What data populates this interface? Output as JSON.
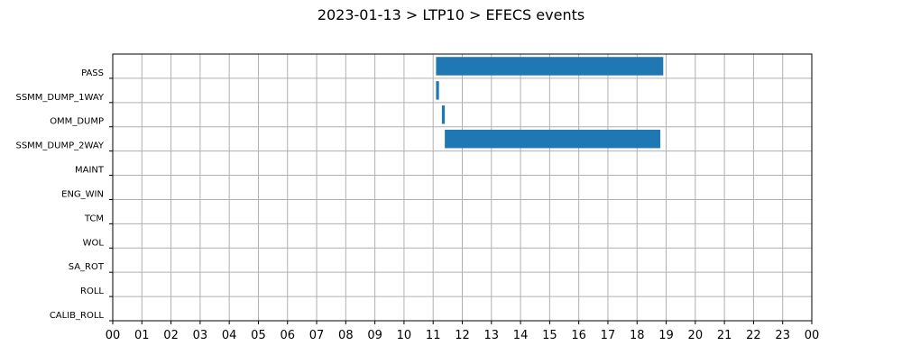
{
  "chart_data": {
    "type": "bar",
    "orientation": "horizontal-timeline",
    "title": "2023-01-13 > LTP10 > EFECS events",
    "xlabel": "",
    "ylabel": "",
    "x_unit": "hour",
    "xlim": [
      0,
      24
    ],
    "x_tick_labels": [
      "00",
      "01",
      "02",
      "03",
      "04",
      "05",
      "06",
      "07",
      "08",
      "09",
      "10",
      "11",
      "12",
      "13",
      "14",
      "15",
      "16",
      "17",
      "18",
      "19",
      "20",
      "21",
      "22",
      "23",
      "00"
    ],
    "categories": [
      "PASS",
      "SSMM_DUMP_1WAY",
      "OMM_DUMP",
      "SSMM_DUMP_2WAY",
      "MAINT",
      "ENG_WIN",
      "TCM",
      "WOL",
      "SA_ROT",
      "ROLL",
      "CALIB_ROLL"
    ],
    "intervals": [
      {
        "category": "PASS",
        "start": 11.1,
        "end": 18.9
      },
      {
        "category": "SSMM_DUMP_1WAY",
        "start": 11.1,
        "end": 11.2
      },
      {
        "category": "OMM_DUMP",
        "start": 11.3,
        "end": 11.4
      },
      {
        "category": "SSMM_DUMP_2WAY",
        "start": 11.4,
        "end": 18.8
      }
    ],
    "grid": true,
    "legend": "none",
    "bar_color": "#1f77b4"
  }
}
